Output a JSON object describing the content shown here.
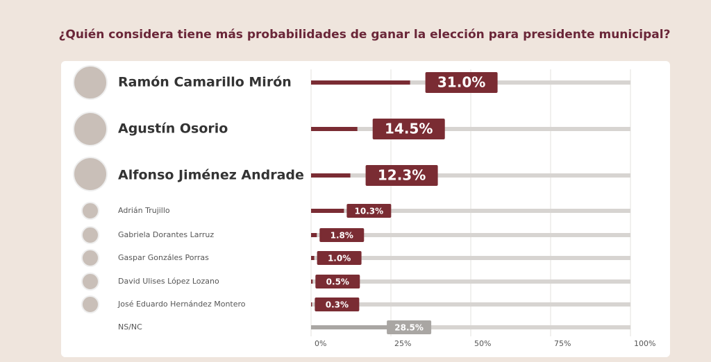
{
  "chart_data": {
    "type": "bar",
    "orientation": "horizontal",
    "title": "¿Quién considera tiene más probabilidades de ganar la elección para presidente municipal?",
    "categories": [
      "Ramón Camarillo Mirón",
      "Agustín Osorio",
      "Alfonso Jiménez Andrade",
      "Adrián Trujillo",
      "Gabriela Dorantes Larruz",
      "Gaspar Gonzáles Porras",
      "David Ulises López Lozano",
      "José Eduardo Hernández Montero",
      "NS/NC"
    ],
    "values": [
      31.0,
      14.5,
      12.3,
      10.3,
      1.8,
      1.0,
      0.5,
      0.3,
      28.5
    ],
    "value_labels": [
      "31.0%",
      "14.5%",
      "12.3%",
      "10.3%",
      "1.8%",
      "1.0%",
      "0.5%",
      "0.3%",
      "28.5%"
    ],
    "colors": [
      "#7a2c33",
      "#7a2c33",
      "#7a2c33",
      "#7a2c33",
      "#7a2c33",
      "#7a2c33",
      "#7a2c33",
      "#7a2c33",
      "#a9a6a3"
    ],
    "xlim": [
      0,
      100
    ],
    "xticks": [
      {
        "value": 0,
        "label": "0%"
      },
      {
        "value": 25,
        "label": "25%"
      },
      {
        "value": 50,
        "label": "50%"
      },
      {
        "value": 75,
        "label": "75%"
      },
      {
        "value": 100,
        "label": "100%"
      }
    ],
    "grid": true
  }
}
